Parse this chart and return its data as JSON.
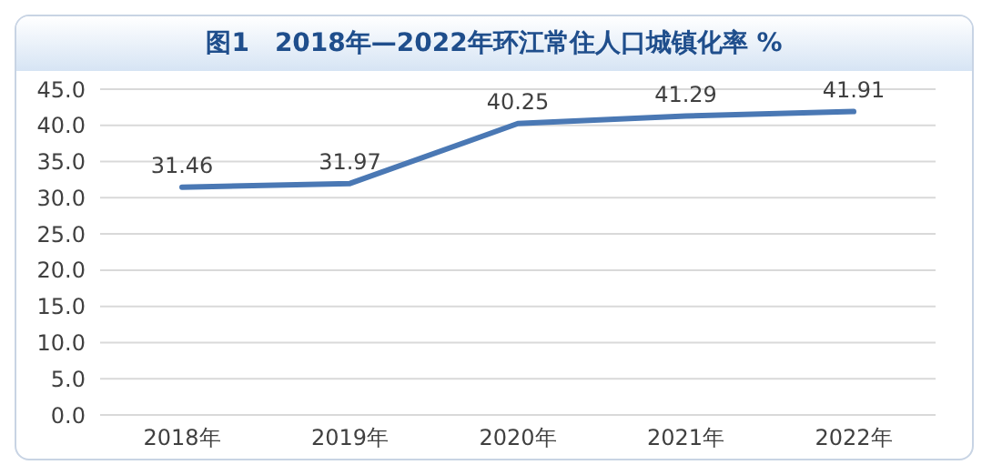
{
  "chart_data": {
    "type": "line",
    "title": "图1　2018年—2022年环江常住人口城镇化率 %",
    "categories": [
      "2018年",
      "2019年",
      "2020年",
      "2021年",
      "2022年"
    ],
    "series": [
      {
        "color": "#4a78b4",
        "values": [
          31.46,
          31.97,
          40.25,
          41.29,
          41.91
        ]
      }
    ],
    "ylim": [
      0,
      45
    ],
    "yticks": [
      {
        "value": 0,
        "label": "0.0"
      },
      {
        "value": 5,
        "label": "5.0"
      },
      {
        "value": 10,
        "label": "10.0"
      },
      {
        "value": 15,
        "label": "15.0"
      },
      {
        "value": 20,
        "label": "20.0"
      },
      {
        "value": 25,
        "label": "25.0"
      },
      {
        "value": 30,
        "label": "30.0"
      },
      {
        "value": 35,
        "label": "35.0"
      },
      {
        "value": 40,
        "label": "40.0"
      },
      {
        "value": 45,
        "label": "45.0"
      }
    ],
    "grid": "y",
    "legend": false,
    "marker": "none",
    "line_style": "solid",
    "data_labels": true
  }
}
